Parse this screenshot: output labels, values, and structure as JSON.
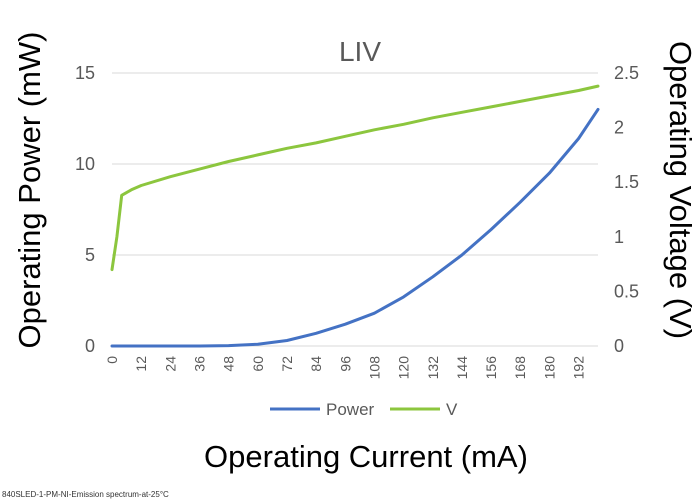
{
  "chart_data": {
    "type": "line",
    "title": "LIV",
    "xlabel": "Operating Current (mA)",
    "ylabel_left": "Operating Power (mW)",
    "ylabel_right": "Operating Voltage (V)",
    "x_ticks": [
      "0",
      "12",
      "24",
      "36",
      "48",
      "60",
      "72",
      "84",
      "96",
      "108",
      "120",
      "132",
      "144",
      "156",
      "168",
      "180",
      "192"
    ],
    "y_left_ticks": [
      "0",
      "5",
      "10",
      "15"
    ],
    "y_right_ticks": [
      "0",
      "0.5",
      "1",
      "1.5",
      "2",
      "2.5"
    ],
    "xlim": [
      0,
      200
    ],
    "ylim_left": [
      0,
      15
    ],
    "ylim_right": [
      0,
      2.5
    ],
    "grid": "horizontal",
    "legend_position": "bottom",
    "series": [
      {
        "name": "Power",
        "axis": "left",
        "color": "#4472C4",
        "x": [
          0,
          12,
          24,
          36,
          48,
          60,
          72,
          84,
          96,
          108,
          120,
          132,
          144,
          156,
          168,
          180,
          192,
          200
        ],
        "y": [
          0,
          0,
          0,
          0,
          0.02,
          0.1,
          0.3,
          0.7,
          1.2,
          1.8,
          2.7,
          3.8,
          5.0,
          6.4,
          7.9,
          9.5,
          11.4,
          13.0
        ]
      },
      {
        "name": "V",
        "axis": "right",
        "color": "#8CC63E",
        "x": [
          0,
          2,
          4,
          8,
          12,
          24,
          36,
          48,
          60,
          72,
          84,
          96,
          108,
          120,
          132,
          144,
          156,
          168,
          180,
          192,
          200
        ],
        "y": [
          0.7,
          1.0,
          1.38,
          1.43,
          1.47,
          1.55,
          1.62,
          1.69,
          1.75,
          1.81,
          1.86,
          1.92,
          1.98,
          2.03,
          2.09,
          2.14,
          2.19,
          2.24,
          2.29,
          2.34,
          2.38
        ]
      }
    ]
  },
  "footer": {
    "caption": "840SLED-1-PM-NI-Emission spectrum-at-25°C"
  }
}
